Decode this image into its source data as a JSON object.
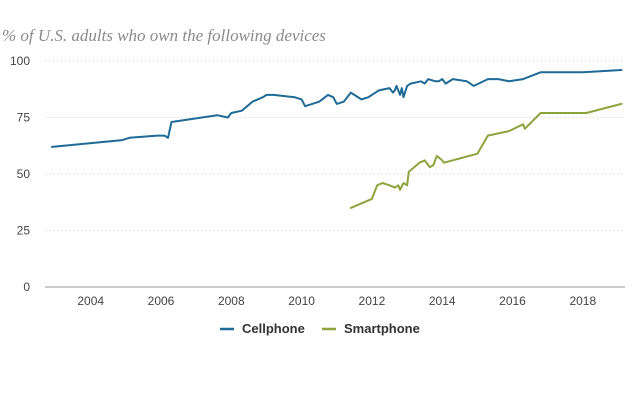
{
  "chart_data": {
    "type": "line",
    "title": "% of U.S. adults who own the following devices",
    "xlabel": "",
    "ylabel": "",
    "xlim": [
      2002.7,
      2019.2
    ],
    "ylim": [
      0,
      100
    ],
    "y_ticks": [
      0,
      25,
      50,
      75,
      100
    ],
    "x_ticks": [
      2004,
      2006,
      2008,
      2010,
      2012,
      2014,
      2016,
      2018
    ],
    "grid": "horizontal dotted",
    "legend_placement": "bottom",
    "series": [
      {
        "name": "Cellphone",
        "color": "#1f6a96",
        "x": [
          2002.9,
          2004.9,
          2005.1,
          2005.9,
          2006.1,
          2006.2,
          2006.3,
          2007.6,
          2007.9,
          2008.0,
          2008.3,
          2008.6,
          2008.9,
          2009.0,
          2009.2,
          2009.8,
          2010.0,
          2010.1,
          2010.5,
          2010.75,
          2010.9,
          2011.0,
          2011.2,
          2011.4,
          2011.7,
          2011.9,
          2012.0,
          2012.2,
          2012.5,
          2012.6,
          2012.65,
          2012.7,
          2012.8,
          2012.85,
          2012.9,
          2013.0,
          2013.1,
          2013.4,
          2013.5,
          2013.6,
          2013.8,
          2013.9,
          2014.0,
          2014.1,
          2014.3,
          2014.7,
          2014.9,
          2015.3,
          2015.6,
          2015.9,
          2016.3,
          2016.8,
          2017.0,
          2018.0,
          2019.1
        ],
        "y": [
          62,
          65,
          66,
          67,
          67,
          66,
          73,
          76,
          75,
          77,
          78,
          82,
          84,
          85,
          85,
          84,
          83,
          80,
          82,
          85,
          84,
          81,
          82,
          86,
          83,
          84,
          85,
          87,
          88,
          86,
          87,
          89,
          85,
          88,
          84,
          89,
          90,
          91,
          90,
          92,
          91,
          91,
          92,
          90,
          92,
          91,
          89,
          92,
          92,
          91,
          92,
          95,
          95,
          95,
          96
        ]
      },
      {
        "name": "Smartphone",
        "color": "#8da43d",
        "x": [
          2011.4,
          2012.0,
          2012.15,
          2012.3,
          2012.5,
          2012.65,
          2012.75,
          2012.8,
          2012.9,
          2013.0,
          2013.05,
          2013.35,
          2013.5,
          2013.65,
          2013.75,
          2013.85,
          2014.0,
          2014.05,
          2015.0,
          2015.3,
          2015.9,
          2016.3,
          2016.35,
          2016.8,
          2018.1,
          2019.1
        ],
        "y": [
          35,
          39,
          45,
          46,
          45,
          44,
          45,
          43,
          46,
          45,
          51,
          55,
          56,
          53,
          54,
          58,
          56,
          55,
          59,
          67,
          69,
          72,
          70,
          77,
          77,
          81
        ]
      }
    ]
  }
}
